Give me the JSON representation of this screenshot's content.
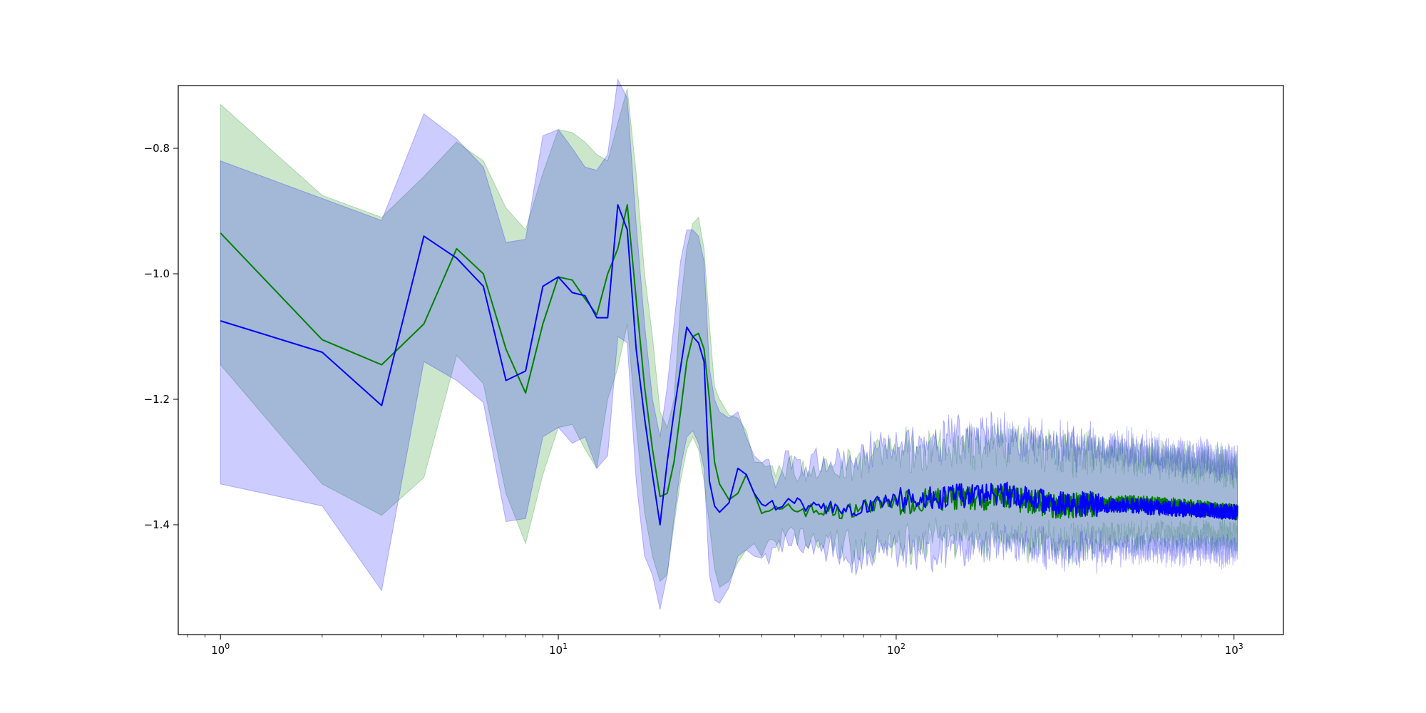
{
  "chart_data": {
    "type": "line",
    "title": "",
    "xlabel": "",
    "ylabel": "",
    "xscale": "log",
    "xlim": [
      0.75,
      1400
    ],
    "ylim": [
      -1.575,
      -0.7
    ],
    "grid": false,
    "legend": "none",
    "x_ticks": [
      {
        "base": "10",
        "exp": "0",
        "value": 1
      },
      {
        "base": "10",
        "exp": "1",
        "value": 10
      },
      {
        "base": "10",
        "exp": "2",
        "value": 100
      },
      {
        "base": "10",
        "exp": "3",
        "value": 1000
      }
    ],
    "y_ticks": [
      {
        "label": "−0.8",
        "value": -0.8
      },
      {
        "label": "−1.0",
        "value": -1.0
      },
      {
        "label": "−1.2",
        "value": -1.2
      },
      {
        "label": "−1.4",
        "value": -1.4
      }
    ],
    "series": [
      {
        "color": "#008000",
        "band_color": "#008000",
        "band_opacity": 0.2,
        "x": [
          1,
          2,
          3,
          4,
          5,
          6,
          7,
          8,
          9,
          10,
          11,
          12,
          13,
          14,
          15,
          16,
          17,
          18,
          19,
          20,
          21,
          22,
          23,
          24,
          25,
          26,
          27,
          28,
          29,
          30,
          32,
          34,
          36,
          38,
          40,
          45,
          50,
          60,
          70,
          80,
          100,
          150,
          200,
          300,
          500,
          700,
          1024
        ],
        "y": [
          -0.935,
          -1.105,
          -1.145,
          -1.08,
          -0.96,
          -1.0,
          -1.12,
          -1.19,
          -1.08,
          -1.005,
          -1.01,
          -1.04,
          -1.065,
          -1.0,
          -0.96,
          -0.89,
          -1.04,
          -1.18,
          -1.28,
          -1.355,
          -1.35,
          -1.3,
          -1.22,
          -1.14,
          -1.1,
          -1.095,
          -1.12,
          -1.2,
          -1.3,
          -1.335,
          -1.36,
          -1.35,
          -1.32,
          -1.35,
          -1.37,
          -1.38,
          -1.375,
          -1.378,
          -1.38,
          -1.37,
          -1.365,
          -1.36,
          -1.355,
          -1.37,
          -1.365,
          -1.37,
          -1.38
        ],
        "upper": [
          -0.73,
          -0.875,
          -0.91,
          -0.845,
          -0.79,
          -0.82,
          -0.895,
          -0.93,
          -0.84,
          -0.77,
          -0.775,
          -0.79,
          -0.81,
          -0.82,
          -0.76,
          -0.705,
          -0.84,
          -1.0,
          -1.1,
          -1.22,
          -1.245,
          -1.2,
          -1.05,
          -0.96,
          -0.92,
          -0.91,
          -0.96,
          -1.08,
          -1.18,
          -1.2,
          -1.225,
          -1.23,
          -1.25,
          -1.3,
          -1.31,
          -1.32,
          -1.31,
          -1.31,
          -1.31,
          -1.3,
          -1.28,
          -1.28,
          -1.27,
          -1.28,
          -1.29,
          -1.3,
          -1.31
        ],
        "lower": [
          -1.145,
          -1.335,
          -1.385,
          -1.325,
          -1.13,
          -1.175,
          -1.35,
          -1.43,
          -1.32,
          -1.245,
          -1.24,
          -1.28,
          -1.31,
          -1.2,
          -1.15,
          -1.08,
          -1.24,
          -1.38,
          -1.45,
          -1.49,
          -1.48,
          -1.4,
          -1.33,
          -1.28,
          -1.26,
          -1.28,
          -1.33,
          -1.4,
          -1.47,
          -1.5,
          -1.49,
          -1.46,
          -1.44,
          -1.43,
          -1.43,
          -1.43,
          -1.42,
          -1.43,
          -1.43,
          -1.44,
          -1.43,
          -1.42,
          -1.42,
          -1.43,
          -1.42,
          -1.42,
          -1.42
        ]
      },
      {
        "color": "#0000ff",
        "band_color": "#0000ff",
        "band_opacity": 0.2,
        "x": [
          1,
          2,
          3,
          4,
          5,
          6,
          7,
          8,
          9,
          10,
          11,
          12,
          13,
          14,
          15,
          16,
          17,
          18,
          19,
          20,
          21,
          22,
          23,
          24,
          25,
          26,
          27,
          28,
          29,
          30,
          32,
          34,
          36,
          38,
          40,
          45,
          50,
          60,
          70,
          80,
          100,
          150,
          200,
          300,
          500,
          700,
          1024
        ],
        "y": [
          -1.075,
          -1.125,
          -1.21,
          -0.94,
          -0.975,
          -1.02,
          -1.17,
          -1.155,
          -1.02,
          -1.005,
          -1.03,
          -1.035,
          -1.07,
          -1.07,
          -0.89,
          -0.93,
          -1.12,
          -1.23,
          -1.32,
          -1.4,
          -1.3,
          -1.22,
          -1.15,
          -1.085,
          -1.1,
          -1.11,
          -1.14,
          -1.33,
          -1.37,
          -1.38,
          -1.365,
          -1.31,
          -1.32,
          -1.35,
          -1.36,
          -1.37,
          -1.365,
          -1.37,
          -1.38,
          -1.37,
          -1.36,
          -1.355,
          -1.35,
          -1.365,
          -1.37,
          -1.375,
          -1.38
        ],
        "upper": [
          -0.82,
          -0.88,
          -0.915,
          -0.745,
          -0.785,
          -0.83,
          -0.95,
          -0.945,
          -0.78,
          -0.77,
          -0.8,
          -0.83,
          -0.835,
          -0.81,
          -0.69,
          -0.72,
          -0.92,
          -1.08,
          -1.2,
          -1.26,
          -1.18,
          -1.08,
          -0.98,
          -0.93,
          -0.93,
          -0.94,
          -0.98,
          -1.15,
          -1.2,
          -1.22,
          -1.23,
          -1.22,
          -1.26,
          -1.29,
          -1.3,
          -1.31,
          -1.3,
          -1.3,
          -1.3,
          -1.28,
          -1.27,
          -1.26,
          -1.26,
          -1.27,
          -1.28,
          -1.29,
          -1.3
        ],
        "lower": [
          -1.335,
          -1.37,
          -1.505,
          -1.14,
          -1.17,
          -1.205,
          -1.395,
          -1.39,
          -1.26,
          -1.245,
          -1.27,
          -1.26,
          -1.31,
          -1.29,
          -1.1,
          -1.11,
          -1.33,
          -1.45,
          -1.48,
          -1.535,
          -1.48,
          -1.39,
          -1.31,
          -1.26,
          -1.25,
          -1.27,
          -1.31,
          -1.48,
          -1.52,
          -1.525,
          -1.5,
          -1.45,
          -1.44,
          -1.45,
          -1.45,
          -1.44,
          -1.43,
          -1.44,
          -1.45,
          -1.45,
          -1.44,
          -1.44,
          -1.43,
          -1.44,
          -1.44,
          -1.44,
          -1.44
        ]
      }
    ]
  }
}
